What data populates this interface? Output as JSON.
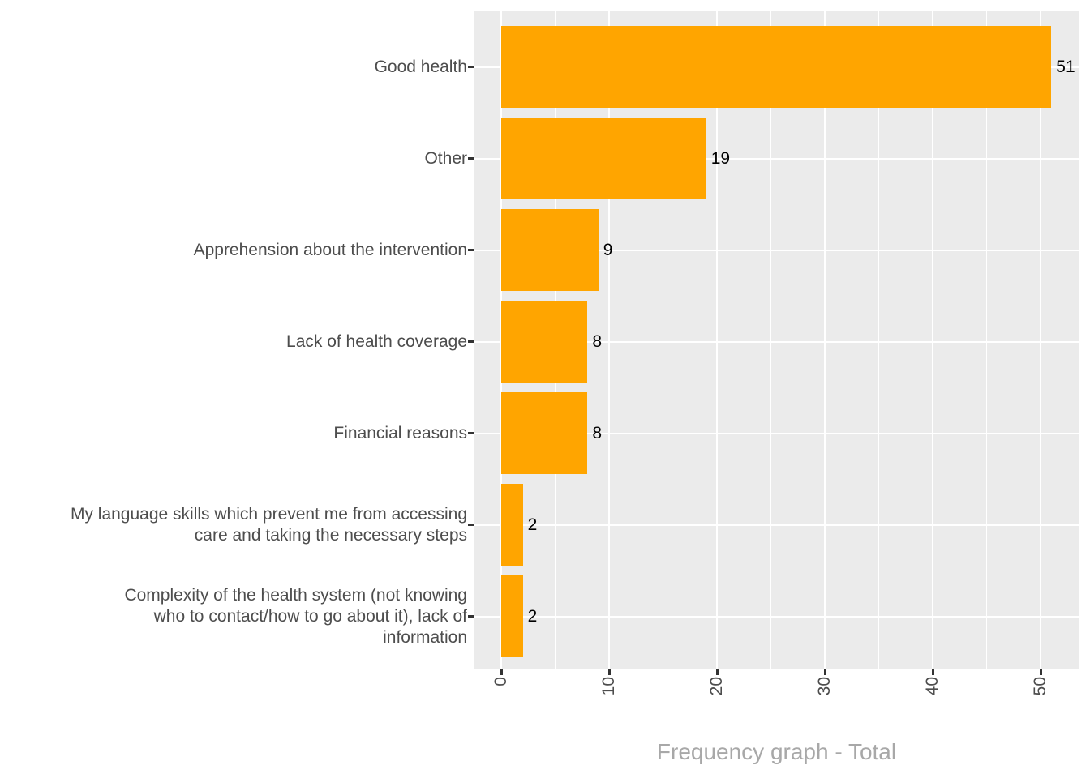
{
  "chart_data": {
    "type": "bar",
    "orientation": "horizontal",
    "title": "",
    "xlabel": "Frequency graph - Total",
    "ylabel": "",
    "categories": [
      "Good health",
      "Other",
      "Apprehension about the intervention",
      "Lack of health coverage",
      "Financial reasons",
      "My language skills which prevent me from accessing\ncare and taking the necessary steps",
      "Complexity of the health system (not knowing\nwho to contact/how to go about it), lack of\ninformation"
    ],
    "values": [
      51,
      19,
      9,
      8,
      8,
      2,
      2
    ],
    "bar_labels": [
      "51",
      "19",
      "9",
      "8",
      "8",
      "2",
      "2"
    ],
    "x_ticks": [
      0,
      10,
      20,
      30,
      40,
      50
    ],
    "x_tick_labels": [
      "0",
      "10",
      "20",
      "30",
      "40",
      "50"
    ],
    "x_minor_ticks": [
      5,
      15,
      25,
      35,
      45
    ],
    "xlim": [
      -2.55,
      53.55
    ],
    "grid": "major-and-minor-x, major-y",
    "legend": "none",
    "colors": {
      "bar_fill": "#FFA500",
      "panel_background": "#EBEBEB",
      "gridline": "#FFFFFF",
      "axis_text": "#4D4D4D",
      "tick_mark": "#333333",
      "value_label": "#000000",
      "axis_title": "#A8A8A8",
      "page_background": "#FFFFFF"
    }
  }
}
